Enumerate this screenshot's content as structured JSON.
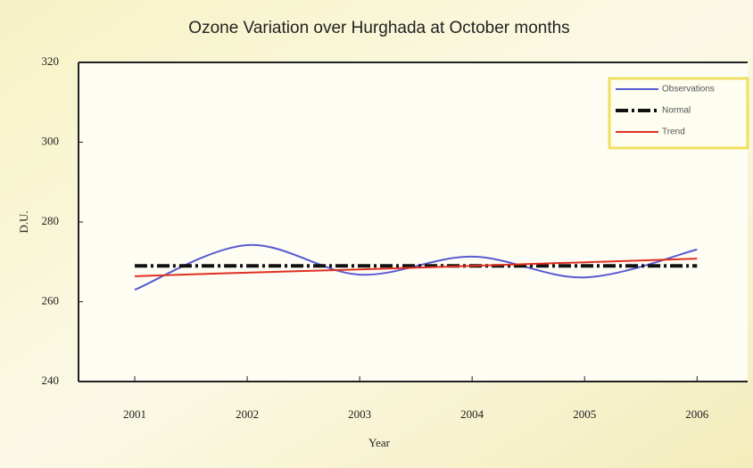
{
  "chart_data": {
    "type": "line",
    "title": "Ozone Variation over Hurghada at October months",
    "x_label": "Year",
    "y_label": "D.U.",
    "x": [
      2001,
      2002,
      2003,
      2004,
      2005,
      2006
    ],
    "series": [
      {
        "name": "Observations",
        "color": "#5a5ad2",
        "values": [
          263,
          274.2,
          266.8,
          271.3,
          266.1,
          273.1
        ]
      },
      {
        "name": "Normal",
        "color": "#111111",
        "values": [
          269,
          269,
          269,
          269,
          269,
          269
        ]
      },
      {
        "name": "Trend",
        "color": "#e03020",
        "values": [
          266.4,
          267.3,
          268.1,
          269,
          269.9,
          270.8
        ]
      }
    ],
    "xlim": [
      2000.5,
      2006.45
    ],
    "xticks": [
      2001,
      2002,
      2003,
      2004,
      2005,
      2006
    ],
    "ylim": [
      240,
      320
    ],
    "yticks": [
      240,
      260,
      280,
      300,
      320
    ],
    "legend": "upper right",
    "grid": false
  }
}
